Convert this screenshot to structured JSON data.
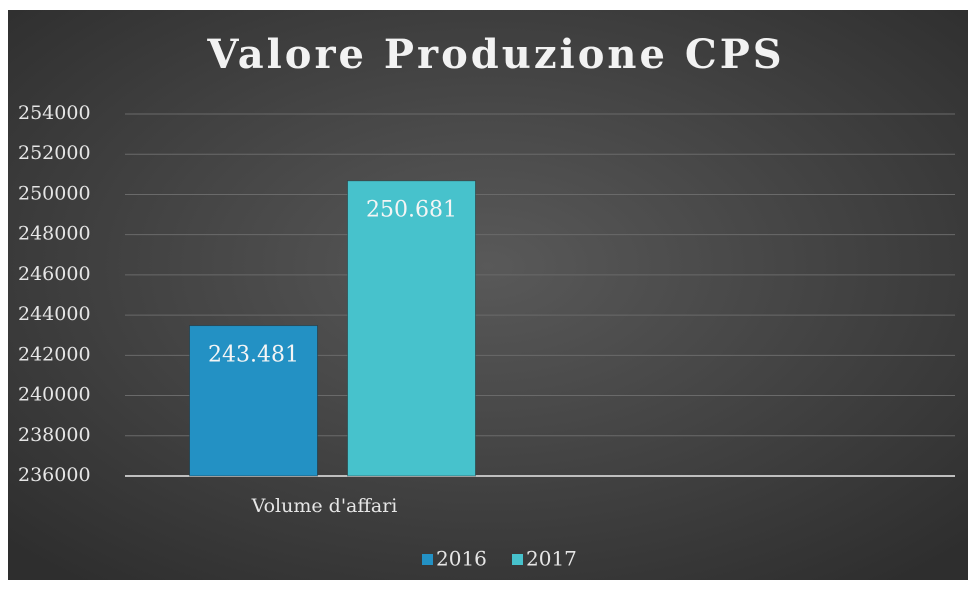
{
  "chart_data": {
    "type": "bar",
    "title": "Valore Produzione CPS",
    "categories": [
      "Volume d'affari",
      null
    ],
    "series": [
      {
        "name": "2016",
        "color": "#2391c4",
        "values": [
          243481,
          null
        ],
        "value_labels": [
          "243.481",
          null
        ]
      },
      {
        "name": "2017",
        "color": "#47c2cc",
        "values": [
          250681,
          null
        ],
        "value_labels": [
          "250.681",
          null
        ]
      }
    ],
    "ylim": [
      236000,
      254000
    ],
    "yticks": [
      236000,
      238000,
      240000,
      242000,
      244000,
      246000,
      248000,
      250000,
      252000,
      254000
    ],
    "grid": true,
    "legend": "bottom"
  }
}
